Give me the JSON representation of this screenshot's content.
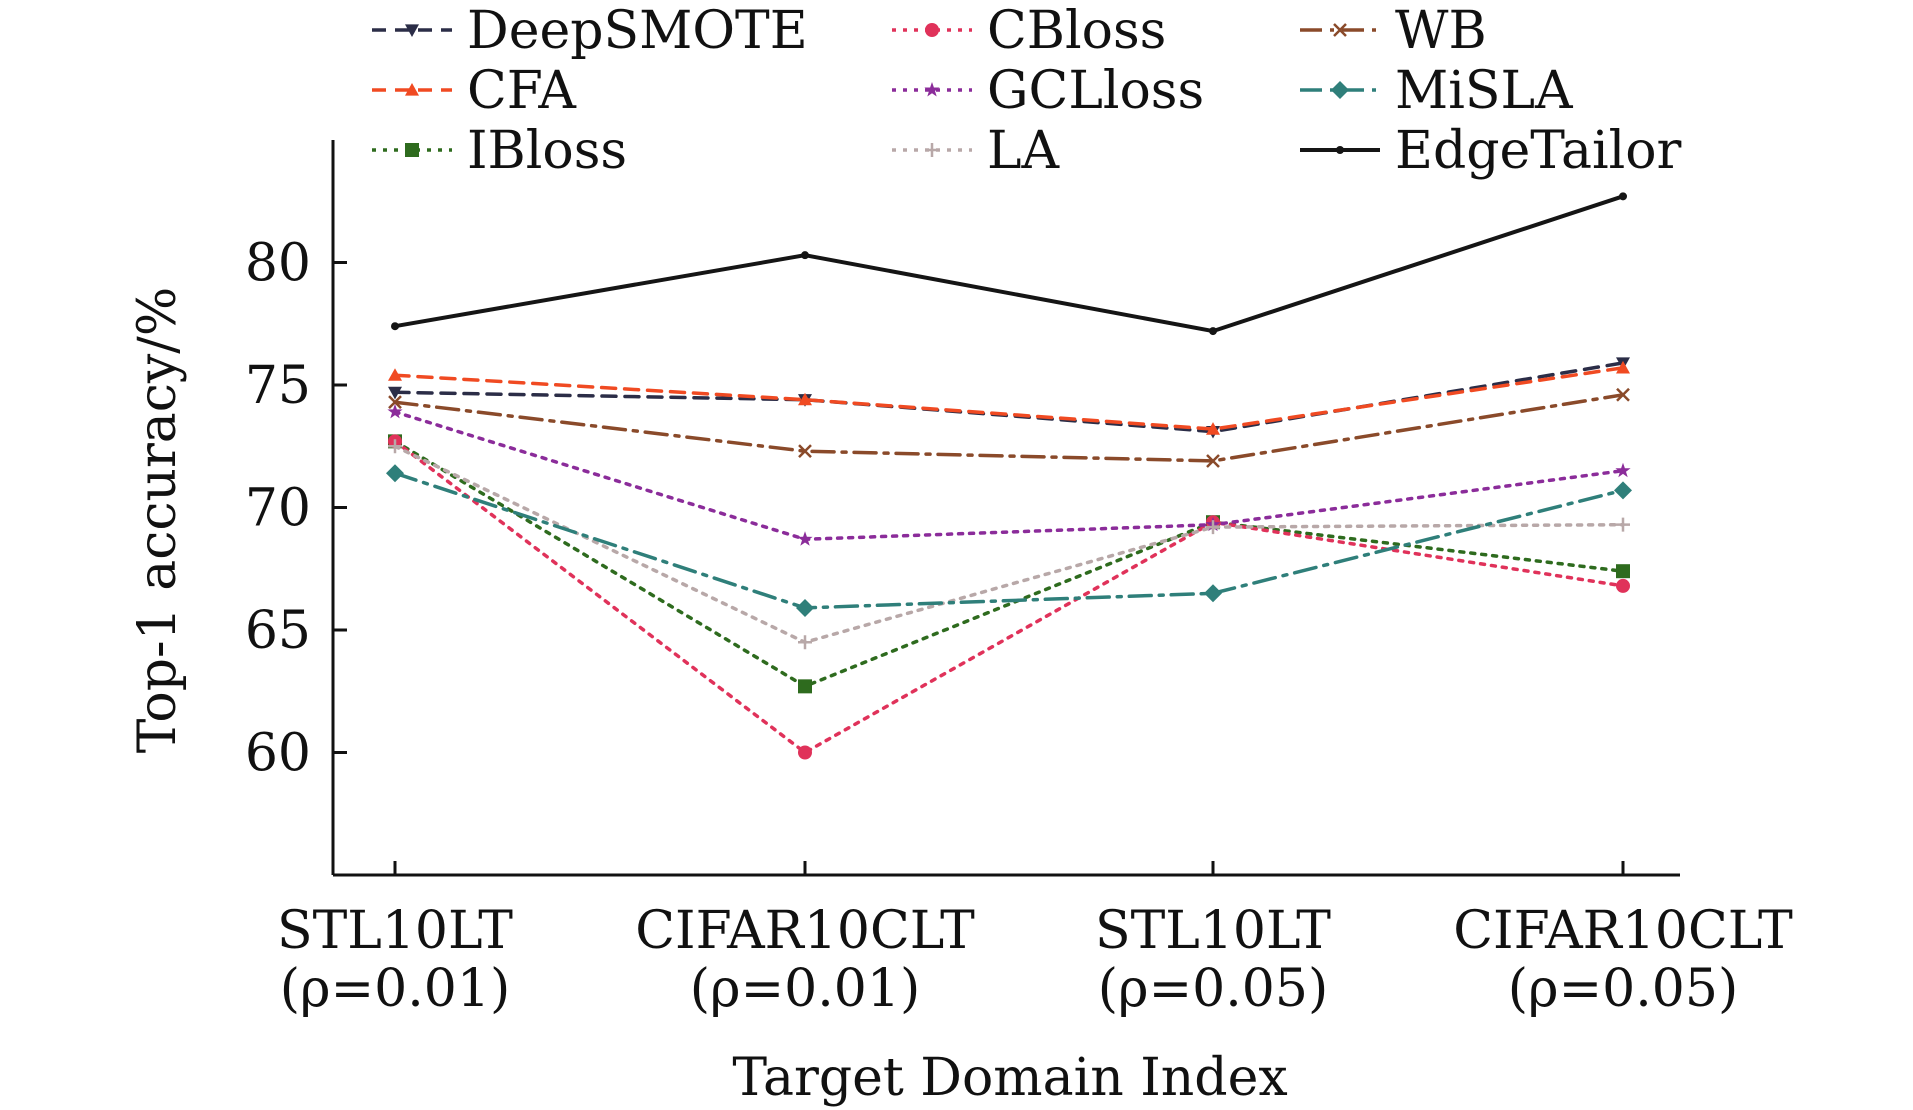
{
  "chart_data": {
    "type": "line",
    "title": "",
    "xlabel": "Target Domain Index",
    "ylabel": "Top-1 accuracy/%",
    "ylim": [
      55,
      85
    ],
    "yticks": [
      60,
      65,
      70,
      75,
      80
    ],
    "grid": false,
    "legend_position": "top",
    "categories": [
      [
        "STL10LT",
        "(ρ=0.01)"
      ],
      [
        "CIFAR10CLT",
        "(ρ=0.01)"
      ],
      [
        "STL10LT",
        "(ρ=0.05)"
      ],
      [
        "CIFAR10CLT",
        "(ρ=0.05)"
      ]
    ],
    "series": [
      {
        "name": "DeepSMOTE",
        "color": "#2b2d47",
        "dash": "dash",
        "marker": "tri-down",
        "values": [
          74.7,
          74.4,
          73.1,
          75.9
        ]
      },
      {
        "name": "CFA",
        "color": "#f04a22",
        "dash": "dash",
        "marker": "tri-up",
        "values": [
          75.4,
          74.4,
          73.2,
          75.7
        ]
      },
      {
        "name": "IBloss",
        "color": "#2e6b1e",
        "dash": "dot",
        "marker": "square",
        "values": [
          72.7,
          62.7,
          69.4,
          67.4
        ]
      },
      {
        "name": "CBloss",
        "color": "#e0325a",
        "dash": "dot",
        "marker": "circle",
        "values": [
          72.7,
          60.0,
          69.4,
          66.8
        ]
      },
      {
        "name": "GCLloss",
        "color": "#8b2c9a",
        "dash": "dot",
        "marker": "star",
        "values": [
          73.9,
          68.7,
          69.3,
          71.5
        ]
      },
      {
        "name": "LA",
        "color": "#b8a8a8",
        "dash": "dot",
        "marker": "plus",
        "values": [
          72.5,
          64.5,
          69.2,
          69.3
        ]
      },
      {
        "name": "WB",
        "color": "#8a4a2a",
        "dash": "dashdot",
        "marker": "x",
        "values": [
          74.3,
          72.3,
          71.9,
          74.6
        ]
      },
      {
        "name": "MiSLA",
        "color": "#2f7f7a",
        "dash": "dashdot",
        "marker": "diamond",
        "values": [
          71.4,
          65.9,
          66.5,
          70.7
        ]
      },
      {
        "name": "EdgeTailor",
        "color": "#151515",
        "dash": "solid",
        "marker": "dot",
        "values": [
          77.4,
          80.3,
          77.2,
          82.7
        ]
      }
    ]
  }
}
